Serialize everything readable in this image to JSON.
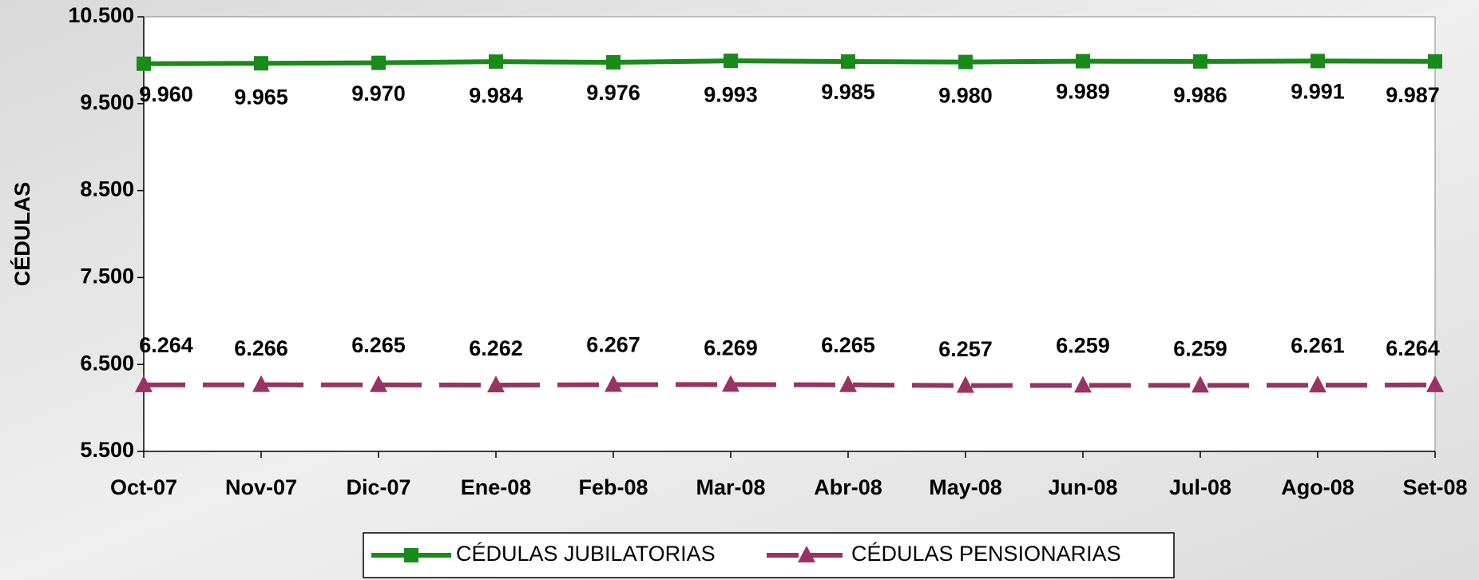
{
  "chart_data": {
    "type": "line",
    "ylabel": "CÉDULAS",
    "categories": [
      "Oct-07",
      "Nov-07",
      "Dic-07",
      "Ene-08",
      "Feb-08",
      "Mar-08",
      "Abr-08",
      "May-08",
      "Jun-08",
      "Jul-08",
      "Ago-08",
      "Set-08"
    ],
    "series": [
      {
        "name": "CÉDULAS JUBILATORIAS",
        "color": "#1a8a1a",
        "marker": "square",
        "dash": false,
        "values": [
          9960,
          9965,
          9970,
          9984,
          9976,
          9993,
          9985,
          9980,
          9989,
          9986,
          9991,
          9987
        ],
        "value_labels": [
          "9.960",
          "9.965",
          "9.970",
          "9.984",
          "9.976",
          "9.993",
          "9.985",
          "9.980",
          "9.989",
          "9.986",
          "9.991",
          "9.987"
        ]
      },
      {
        "name": "CÉDULAS PENSIONARIAS",
        "color": "#993366",
        "marker": "triangle",
        "dash": true,
        "values": [
          6264,
          6266,
          6265,
          6262,
          6267,
          6269,
          6265,
          6257,
          6259,
          6259,
          6261,
          6264
        ],
        "value_labels": [
          "6.264",
          "6.266",
          "6.265",
          "6.262",
          "6.267",
          "6.269",
          "6.265",
          "6.257",
          "6.259",
          "6.259",
          "6.261",
          "6.264"
        ]
      }
    ],
    "ylim": [
      5500,
      10500
    ],
    "yticks": [
      {
        "value": 5500,
        "label": "5.500"
      },
      {
        "value": 6500,
        "label": "6.500"
      },
      {
        "value": 7500,
        "label": "7.500"
      },
      {
        "value": 8500,
        "label": "8.500"
      },
      {
        "value": 9500,
        "label": "9.500"
      },
      {
        "value": 10500,
        "label": "10.500"
      }
    ],
    "legend": "bottom"
  }
}
